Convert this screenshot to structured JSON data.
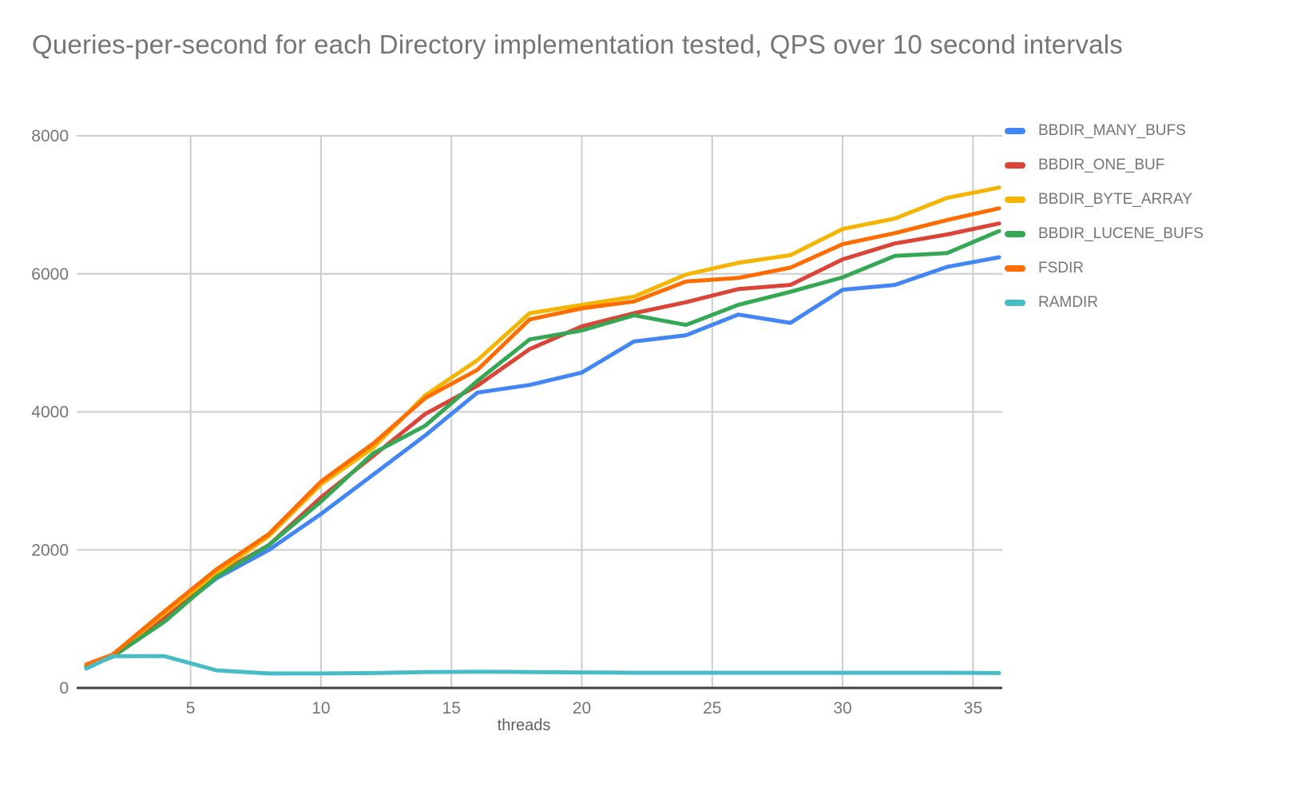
{
  "chart": {
    "title": "Queries-per-second for each Directory implementation tested, QPS over 10 second intervals"
  },
  "chart_data": {
    "type": "line",
    "title": "Queries-per-second for each Directory implementation tested, QPS over 10 second intervals",
    "xlabel": "threads",
    "ylabel": "",
    "xlim": [
      1,
      36
    ],
    "ylim": [
      0,
      8000
    ],
    "x_ticks": [
      5,
      10,
      15,
      20,
      25,
      30,
      35
    ],
    "y_ticks": [
      0,
      2000,
      4000,
      6000,
      8000
    ],
    "grid": true,
    "legend_position": "right",
    "x": [
      1,
      2,
      4,
      6,
      8,
      10,
      12,
      14,
      16,
      18,
      20,
      22,
      24,
      26,
      28,
      30,
      32,
      34,
      36
    ],
    "series": [
      {
        "name": "BBDIR_MANY_BUFS",
        "color": "#4285F4",
        "values": [
          300,
          450,
          1000,
          1590,
          2000,
          2520,
          3090,
          3660,
          4280,
          4390,
          4570,
          5020,
          5110,
          5410,
          5290,
          5770,
          5840,
          6100,
          6240
        ]
      },
      {
        "name": "BBDIR_ONE_BUF",
        "color": "#DB4437",
        "values": [
          320,
          460,
          1020,
          1640,
          2070,
          2760,
          3360,
          3970,
          4380,
          4910,
          5240,
          5430,
          5590,
          5780,
          5840,
          6210,
          6440,
          6570,
          6730
        ]
      },
      {
        "name": "BBDIR_BYTE_ARRAY",
        "color": "#F4B400",
        "values": [
          330,
          470,
          1080,
          1670,
          2200,
          2950,
          3480,
          4240,
          4750,
          5430,
          5550,
          5670,
          5990,
          6160,
          6270,
          6650,
          6800,
          7100,
          7250
        ]
      },
      {
        "name": "BBDIR_LUCENE_BUFS",
        "color": "#34A853",
        "values": [
          310,
          450,
          960,
          1610,
          2070,
          2700,
          3400,
          3800,
          4450,
          5050,
          5180,
          5400,
          5260,
          5550,
          5740,
          5950,
          6260,
          6300,
          6620
        ]
      },
      {
        "name": "FSDIR",
        "color": "#FF6D01",
        "values": [
          340,
          480,
          1110,
          1720,
          2230,
          2990,
          3540,
          4200,
          4610,
          5340,
          5500,
          5600,
          5890,
          5940,
          6090,
          6430,
          6590,
          6780,
          6950
        ]
      },
      {
        "name": "RAMDIR",
        "color": "#46BDC6",
        "values": [
          280,
          460,
          460,
          255,
          210,
          210,
          215,
          230,
          235,
          230,
          225,
          220,
          220,
          220,
          220,
          220,
          220,
          220,
          215
        ]
      }
    ]
  },
  "style_colors": {
    "grid": "#cccccc",
    "axis": "#424242",
    "text": "#757575"
  }
}
